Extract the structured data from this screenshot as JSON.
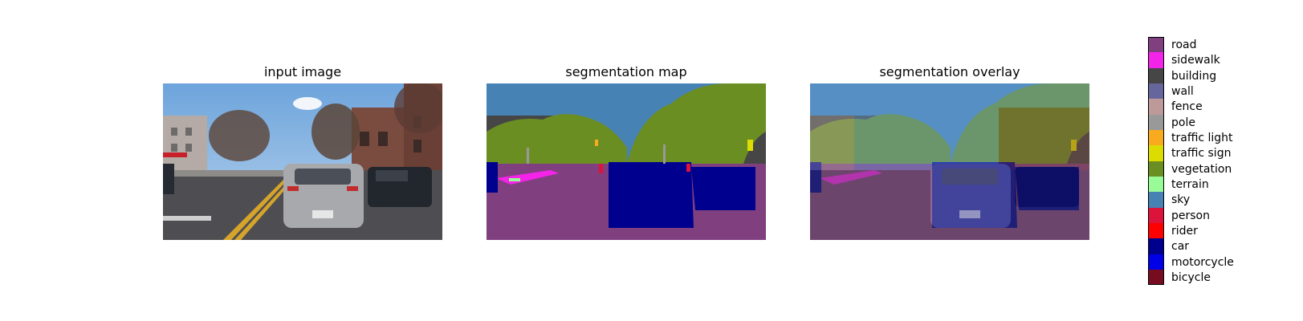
{
  "panels": [
    {
      "title": "input image"
    },
    {
      "title": "segmentation map"
    },
    {
      "title": "segmentation overlay"
    }
  ],
  "legend": [
    {
      "label": "road",
      "color": "#804080"
    },
    {
      "label": "sidewalk",
      "color": "#f423e8"
    },
    {
      "label": "building",
      "color": "#464646"
    },
    {
      "label": "wall",
      "color": "#66669c"
    },
    {
      "label": "fence",
      "color": "#be9999"
    },
    {
      "label": "pole",
      "color": "#999999"
    },
    {
      "label": "traffic light",
      "color": "#faaa1e"
    },
    {
      "label": "traffic sign",
      "color": "#dcdc00"
    },
    {
      "label": "vegetation",
      "color": "#6b8e23"
    },
    {
      "label": "terrain",
      "color": "#98fb98"
    },
    {
      "label": "sky",
      "color": "#4682b4"
    },
    {
      "label": "person",
      "color": "#dc143c"
    },
    {
      "label": "rider",
      "color": "#ff0000"
    },
    {
      "label": "car",
      "color": "#00008e"
    },
    {
      "label": "motorcycle",
      "color": "#0000e6"
    },
    {
      "label": "bicycle",
      "color": "#770b20"
    }
  ]
}
